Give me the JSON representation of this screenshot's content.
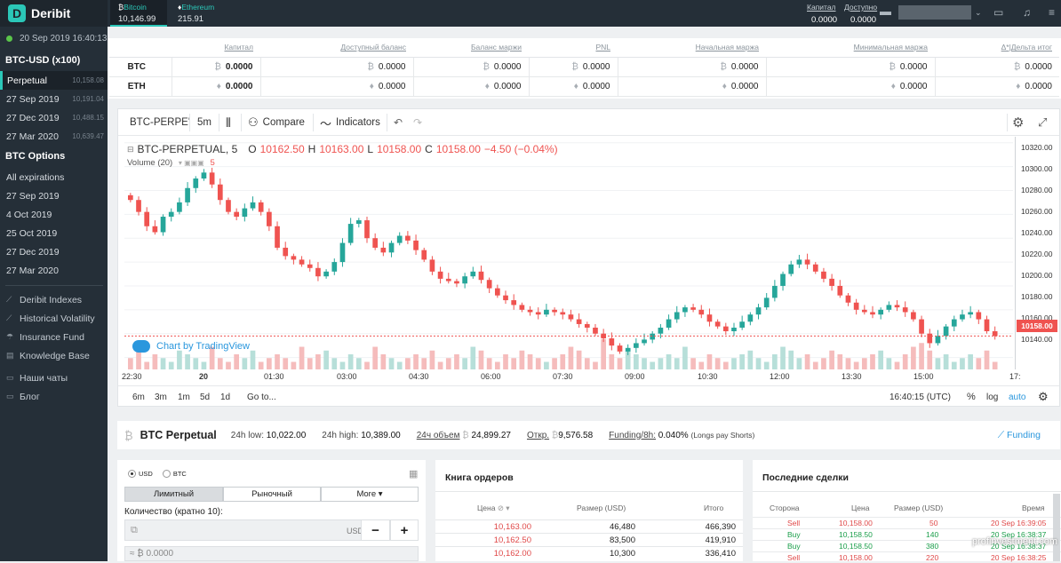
{
  "app": {
    "name": "Deribit"
  },
  "sidebar": {
    "time": "20 Sep 2019 16:40:13",
    "futures_header": "BTC-USD (x100)",
    "futures": [
      {
        "label": "Perpetual",
        "price": "10,158.08",
        "active": true
      },
      {
        "label": "27 Sep 2019",
        "price": "10,191.04"
      },
      {
        "label": "27 Dec 2019",
        "price": "10,488.15"
      },
      {
        "label": "27 Mar 2020",
        "price": "10,639.47"
      }
    ],
    "options_header": "BTC Options",
    "options": [
      "All expirations",
      "27 Sep 2019",
      "4 Oct 2019",
      "25 Oct 2019",
      "27 Dec 2019",
      "27 Mar 2020"
    ],
    "links": [
      {
        "label": "Deribit Indexes",
        "icon": "chart-line-icon"
      },
      {
        "label": "Historical Volatility",
        "icon": "chart-line-icon"
      },
      {
        "label": "Insurance Fund",
        "icon": "umbrella-icon"
      },
      {
        "label": "Knowledge Base",
        "icon": "book-icon"
      },
      {
        "label": "Наши чаты",
        "icon": "chat-icon"
      },
      {
        "label": "Блог",
        "icon": "chat-icon"
      }
    ]
  },
  "topbar": {
    "tickers": [
      {
        "name": "Bitcoin",
        "value": "10,146.99",
        "selected": true
      },
      {
        "name": "Ethereum",
        "value": "215.91"
      }
    ],
    "capital_label": "Капитал",
    "capital_value": "0.0000",
    "available_label": "Доступно",
    "available_value": "0.0000"
  },
  "balances": {
    "headers": [
      "Капитал",
      "Доступный баланс",
      "Баланс маржи",
      "PNL",
      "Начальная маржа",
      "Минимальная маржа",
      "Δ*|Дельта итог"
    ],
    "rows": [
      {
        "currency": "BTC",
        "values": [
          "0.0000",
          "0.0000",
          "0.0000",
          "0.0000",
          "0.0000",
          "0.0000",
          "0.0000"
        ]
      },
      {
        "currency": "ETH",
        "values": [
          "0.0000",
          "0.0000",
          "0.0000",
          "0.0000",
          "0.0000",
          "0.0000",
          "0.0000"
        ]
      }
    ]
  },
  "chart_toolbar": {
    "symbol": "BTC-PERPE'",
    "interval": "5m",
    "compare": "Compare",
    "indicators": "Indicators"
  },
  "chart_legend": {
    "symbol": "BTC-PERPETUAL, 5",
    "o_label": "O",
    "o": "10162.50",
    "h_label": "H",
    "h": "10163.00",
    "l_label": "L",
    "l": "10158.00",
    "c_label": "C",
    "c": "10158.00",
    "change": "−4.50 (−0.04%)",
    "volume": "Volume (20)",
    "volume_val": "5",
    "watermark": "Chart by TradingView"
  },
  "chart_data": {
    "type": "candlestick",
    "symbol": "BTC-PERPETUAL",
    "interval": "5m",
    "ylim": [
      10130,
      10325
    ],
    "yticks": [
      "10320.00",
      "10300.00",
      "10280.00",
      "10260.00",
      "10240.00",
      "10220.00",
      "10200.00",
      "10180.00",
      "10160.00",
      "10140.00"
    ],
    "xticks": [
      "22:30",
      "20",
      "01:30",
      "03:00",
      "04:30",
      "06:00",
      "07:30",
      "09:00",
      "10:30",
      "12:00",
      "13:30",
      "15:00",
      "17:"
    ],
    "last_price": "10158.00",
    "close": [
      10272,
      10262,
      10250,
      10245,
      10258,
      10262,
      10270,
      10282,
      10290,
      10295,
      10285,
      10272,
      10262,
      10258,
      10265,
      10270,
      10262,
      10250,
      10232,
      10225,
      10222,
      10218,
      10215,
      10208,
      10212,
      10220,
      10236,
      10252,
      10255,
      10240,
      10232,
      10228,
      10236,
      10242,
      10238,
      10230,
      10222,
      10212,
      10206,
      10204,
      10202,
      10208,
      10212,
      10205,
      10198,
      10192,
      10188,
      10184,
      10180,
      10178,
      10176,
      10180,
      10178,
      10176,
      10172,
      10168,
      10165,
      10160,
      10156,
      10150,
      10145,
      10148,
      10152,
      10155,
      10160,
      10165,
      10172,
      10178,
      10182,
      10180,
      10176,
      10170,
      10166,
      10162,
      10165,
      10170,
      10176,
      10182,
      10190,
      10200,
      10210,
      10218,
      10222,
      10218,
      10212,
      10206,
      10200,
      10192,
      10186,
      10180,
      10178,
      10176,
      10180,
      10184,
      10182,
      10178,
      10172,
      10160,
      10152,
      10158,
      10166,
      10172,
      10176,
      10178,
      10172,
      10162,
      10158
    ],
    "volume": [
      3,
      6,
      2,
      4,
      3,
      2,
      5,
      4,
      3,
      2,
      6,
      3,
      2,
      4,
      3,
      5,
      2,
      3,
      4,
      3,
      2,
      6,
      3,
      4,
      5,
      3,
      2,
      4,
      3,
      2,
      6,
      4,
      3,
      2,
      3,
      4,
      3,
      5,
      2,
      3,
      4,
      3,
      6,
      5,
      3,
      2,
      4,
      3,
      5,
      4,
      3,
      2,
      3,
      4,
      6,
      5,
      3,
      2,
      8,
      4,
      3,
      5,
      4,
      3,
      2,
      3,
      4,
      3,
      6,
      3,
      2,
      4,
      3,
      2,
      3,
      4,
      5,
      3,
      2,
      4,
      6,
      5,
      3,
      4,
      2,
      3,
      5,
      4,
      3,
      2,
      3,
      4,
      5,
      3,
      2,
      4,
      6,
      7,
      5,
      3,
      4,
      2,
      3,
      4,
      3,
      5,
      2
    ]
  },
  "chart_bottom": {
    "ranges": [
      "6m",
      "3m",
      "1m",
      "5d",
      "1d",
      "Go to..."
    ],
    "time": "16:40:15 (UTC)",
    "pct": "%",
    "log": "log",
    "auto": "auto"
  },
  "instrument": {
    "name": "BTC Perpetual",
    "low_label": "24h low:",
    "low": "10,022.00",
    "high_label": "24h high:",
    "high": "10,389.00",
    "vol_label": "24ч объем",
    "vol": "24,899.27",
    "oi_label": "Откр.",
    "oi": "9,576.58",
    "funding_label": "Funding/8h:",
    "funding": "0.040%",
    "funding_note": "(Longs pay Shorts)",
    "funding_link": "Funding"
  },
  "order_form": {
    "unit_usd": "USD",
    "unit_btc": "BTC",
    "tabs": [
      "Лимитный",
      "Рыночный",
      "More ▾"
    ],
    "qty_label": "Количество (кратно 10):",
    "qty_unit": "USD",
    "minus": "−",
    "plus": "+",
    "price_placeholder": "≈ ₿ 0.0000"
  },
  "orderbook": {
    "title": "Книга ордеров",
    "headers": [
      "Цена",
      "Размер (USD)",
      "Итого"
    ],
    "rows": [
      {
        "price": "10,163.00",
        "size": "46,480",
        "total": "466,390"
      },
      {
        "price": "10,162.50",
        "size": "83,500",
        "total": "419,910"
      },
      {
        "price": "10,162.00",
        "size": "10,300",
        "total": "336,410"
      }
    ]
  },
  "trades": {
    "title": "Последние сделки",
    "headers": [
      "Сторона",
      "Цена",
      "Размер (USD)",
      "Время"
    ],
    "rows": [
      {
        "side": "Sell",
        "price": "10,158.00",
        "size": "50",
        "time": "20 Sep 16:39:05"
      },
      {
        "side": "Buy",
        "price": "10,158.50",
        "size": "140",
        "time": "20 Sep 16:38:37"
      },
      {
        "side": "Buy",
        "price": "10,158.50",
        "size": "380",
        "time": "20 Sep 16:38:37"
      },
      {
        "side": "Sell",
        "price": "10,158.00",
        "size": "220",
        "time": "20 Sep 16:38:25"
      }
    ]
  },
  "watermark": "profinvestment.com",
  "colors": {
    "accent": "#2bc7b8",
    "up": "#26a69a",
    "down": "#ef5350",
    "sidebar": "#252f38"
  }
}
